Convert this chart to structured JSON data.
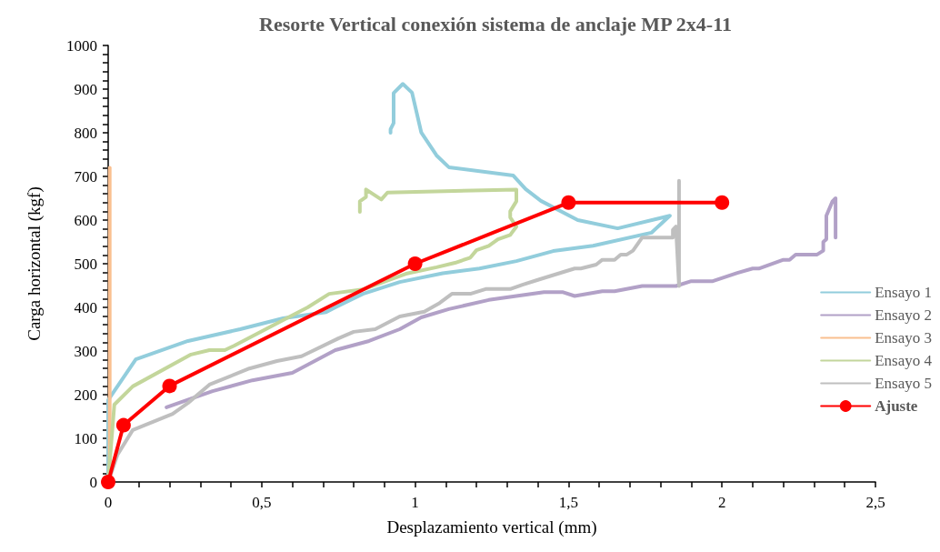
{
  "chart_data": {
    "type": "line",
    "title": "Resorte Vertical conexión sistema de anclaje MP 2x4-11",
    "xlabel": "Desplazamiento vertical (mm)",
    "ylabel": "Carga horizontal (kgf)",
    "xlim": [
      0,
      2.5
    ],
    "ylim": [
      0,
      1000
    ],
    "xticks": [
      0,
      {
        "value": 0.1,
        "label": null
      },
      {
        "value": 0.2,
        "label": null
      },
      {
        "value": 0.3,
        "label": null
      },
      {
        "value": 0.4,
        "label": null
      },
      {
        "value": 0.5,
        "label": "0,5"
      },
      {
        "value": 0.6,
        "label": null
      },
      {
        "value": 0.7,
        "label": null
      },
      {
        "value": 0.8,
        "label": null
      },
      {
        "value": 0.9,
        "label": null
      },
      1,
      {
        "value": 1.1,
        "label": null
      },
      {
        "value": 1.2,
        "label": null
      },
      {
        "value": 1.3,
        "label": null
      },
      {
        "value": 1.4,
        "label": null
      },
      {
        "value": 1.5,
        "label": "1,5"
      },
      {
        "value": 1.6,
        "label": null
      },
      {
        "value": 1.7,
        "label": null
      },
      {
        "value": 1.8,
        "label": null
      },
      {
        "value": 1.9,
        "label": null
      },
      2,
      {
        "value": 2.1,
        "label": null
      },
      {
        "value": 2.2,
        "label": null
      },
      {
        "value": 2.3,
        "label": null
      },
      {
        "value": 2.4,
        "label": null
      },
      {
        "value": 2.5,
        "label": "2,5"
      }
    ],
    "yticks": [
      0,
      {
        "value": 20,
        "label": null
      },
      {
        "value": 40,
        "label": null
      },
      {
        "value": 60,
        "label": null
      },
      {
        "value": 80,
        "label": null
      },
      100,
      {
        "value": 120,
        "label": null
      },
      {
        "value": 140,
        "label": null
      },
      {
        "value": 160,
        "label": null
      },
      {
        "value": 180,
        "label": null
      },
      200,
      {
        "value": 220,
        "label": null
      },
      {
        "value": 240,
        "label": null
      },
      {
        "value": 260,
        "label": null
      },
      {
        "value": 280,
        "label": null
      },
      300,
      {
        "value": 320,
        "label": null
      },
      {
        "value": 340,
        "label": null
      },
      {
        "value": 360,
        "label": null
      },
      {
        "value": 380,
        "label": null
      },
      400,
      {
        "value": 420,
        "label": null
      },
      {
        "value": 440,
        "label": null
      },
      {
        "value": 460,
        "label": null
      },
      {
        "value": 480,
        "label": null
      },
      500,
      {
        "value": 520,
        "label": null
      },
      {
        "value": 540,
        "label": null
      },
      {
        "value": 560,
        "label": null
      },
      {
        "value": 580,
        "label": null
      },
      600,
      {
        "value": 620,
        "label": null
      },
      {
        "value": 640,
        "label": null
      },
      {
        "value": 660,
        "label": null
      },
      {
        "value": 680,
        "label": null
      },
      700,
      {
        "value": 720,
        "label": null
      },
      {
        "value": 740,
        "label": null
      },
      {
        "value": 760,
        "label": null
      },
      {
        "value": 780,
        "label": null
      },
      800,
      {
        "value": 820,
        "label": null
      },
      {
        "value": 840,
        "label": null
      },
      {
        "value": 860,
        "label": null
      },
      {
        "value": 880,
        "label": null
      },
      900,
      {
        "value": 920,
        "label": null
      },
      {
        "value": 940,
        "label": null
      },
      {
        "value": 960,
        "label": null
      },
      {
        "value": 980,
        "label": null
      },
      1000
    ],
    "grid": false,
    "legend": "right",
    "marker": "none",
    "line_style": "solid",
    "series": [
      {
        "name": "Ensayo 1",
        "color": "#92cddc",
        "x": [
          0,
          0,
          0.09,
          0.26,
          0.43,
          0.57,
          0.71,
          0.74,
          0.83,
          0.95,
          1.09,
          1.21,
          1.33,
          1.45,
          1.58,
          1.77,
          1.83,
          1.66,
          1.53,
          1.41,
          1.36,
          1.32,
          1.11,
          1.07,
          1.02,
          0.99,
          0.96,
          0.93,
          0.93,
          0.92,
          0.92
        ],
        "values": [
          0,
          188,
          281,
          323,
          350,
          375,
          389,
          400,
          431,
          458,
          478,
          489,
          506,
          529,
          541,
          571,
          610,
          581,
          600,
          644,
          671,
          702,
          721,
          748,
          801,
          892,
          912,
          891,
          822,
          808,
          800
        ]
      },
      {
        "name": "Ensayo 2",
        "color": "#b2a1c7",
        "x": [
          0.19,
          0.27,
          0.34,
          0.47,
          0.6,
          0.74,
          0.85,
          0.95,
          1.02,
          1.11,
          1.24,
          1.42,
          1.48,
          1.52,
          1.61,
          1.65,
          1.74,
          1.85,
          1.9,
          1.97,
          2.05,
          2.1,
          2.12,
          2.2,
          2.22,
          2.24,
          2.31,
          2.33,
          2.33,
          2.34,
          2.34,
          2.36,
          2.37,
          2.37
        ],
        "values": [
          171,
          191,
          208,
          233,
          250,
          302,
          323,
          350,
          377,
          396,
          417,
          435,
          435,
          426,
          437,
          437,
          449,
          449,
          460,
          460,
          479,
          489,
          489,
          509,
          509,
          521,
          521,
          530,
          550,
          556,
          610,
          643,
          650,
          560
        ]
      },
      {
        "name": "Ensayo 3",
        "color": "#fac090",
        "x": [
          0.005,
          0.005,
          0.005,
          0.005,
          0.005,
          0.005,
          0.005,
          0.005,
          0.005
        ],
        "values": [
          0,
          100,
          200,
          300,
          400,
          500,
          600,
          700,
          720
        ]
      },
      {
        "name": "Ensayo 4",
        "color": "#c3d69b",
        "x": [
          0,
          0.02,
          0.08,
          0.27,
          0.33,
          0.38,
          0.41,
          0.57,
          0.65,
          0.72,
          0.83,
          0.97,
          1.07,
          1.13,
          1.18,
          1.2,
          1.24,
          1.27,
          1.31,
          1.33,
          1.31,
          1.31,
          1.33,
          1.33,
          0.91,
          0.89,
          0.84,
          0.84,
          0.82,
          0.82
        ],
        "values": [
          0,
          177,
          219,
          292,
          302,
          302,
          312,
          371,
          400,
          431,
          441,
          477,
          492,
          502,
          514,
          531,
          541,
          556,
          566,
          585,
          606,
          620,
          643,
          670,
          663,
          647,
          670,
          653,
          643,
          619
        ]
      },
      {
        "name": "Ensayo 5",
        "color": "#bfbfbf",
        "x": [
          0,
          0.03,
          0.08,
          0.21,
          0.26,
          0.33,
          0.46,
          0.55,
          0.63,
          0.75,
          0.8,
          0.87,
          0.95,
          1.03,
          1.08,
          1.12,
          1.18,
          1.23,
          1.31,
          1.35,
          1.4,
          1.52,
          1.54,
          1.59,
          1.61,
          1.65,
          1.67,
          1.69,
          1.71,
          1.74,
          1.84,
          1.84,
          1.85,
          1.86,
          1.86
        ],
        "values": [
          0,
          62,
          119,
          156,
          181,
          223,
          260,
          277,
          288,
          329,
          344,
          350,
          379,
          390,
          410,
          431,
          431,
          442,
          442,
          452,
          463,
          489,
          489,
          498,
          509,
          509,
          521,
          521,
          530,
          560,
          560,
          578,
          585,
          449,
          690
        ]
      },
      {
        "name": "Ajuste",
        "color": "#ff0000",
        "marker": "circle",
        "x": [
          0,
          0.05,
          0.2,
          1,
          1.5,
          2
        ],
        "values": [
          0,
          130,
          220,
          500,
          640,
          640
        ]
      }
    ]
  }
}
